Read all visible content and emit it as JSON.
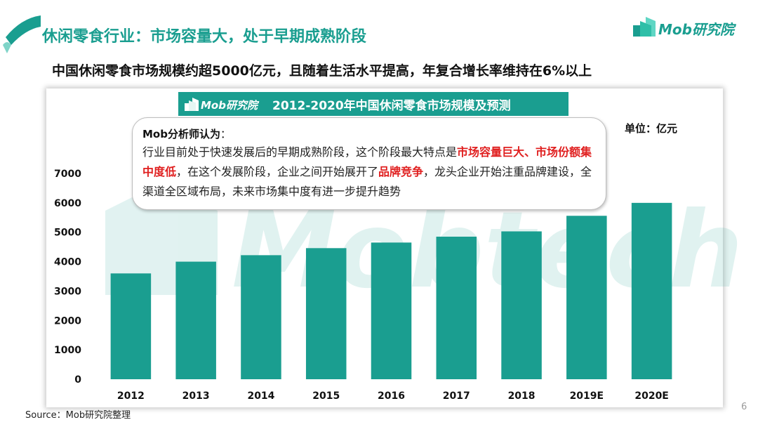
{
  "header": {
    "title": "休闲零食行业：市场容量大，处于早期成熟阶段",
    "subtitle": "中国休闲零食市场规模约超5000亿元，且随着生活水平提高，年复合增长率维持在6%以上",
    "logo_text": "Mob研究院"
  },
  "chart_banner": {
    "logo_text": "Mob研究院",
    "title": "2012-2020年中国休闲零食市场规模及预测"
  },
  "unit_label": "单位：亿元",
  "callout": {
    "heading": "Mob分析师认为",
    "heading_colon": "：",
    "body_1": "行业目前处于快速发展后的早期成熟阶段，这个阶段最大特点是",
    "highlight_1": "市场容量巨大、市场份额集中度低",
    "body_2": "，在这个发展阶段，企业之间开始展开了",
    "highlight_2": "品牌竞争",
    "body_3": "，龙头企业开始注重品牌建设，全渠道全区域布局，未来市场集中度有进一步提升趋势"
  },
  "watermark": "Mobtech",
  "source": "Source：Mob研究院整理",
  "page_number": "6",
  "colors": {
    "accent": "#1a9e90",
    "bar": "#1a9e90",
    "highlight": "#e02020"
  },
  "chart_data": {
    "type": "bar",
    "title": "2012-2020年中国休闲零食市场规模及预测",
    "categories": [
      "2012",
      "2013",
      "2014",
      "2015",
      "2016",
      "2017",
      "2018",
      "2019E",
      "2020E"
    ],
    "values": [
      3600,
      4000,
      4220,
      4460,
      4650,
      4850,
      5030,
      5560,
      6000
    ],
    "ylim": [
      0,
      7000
    ],
    "yticks": [
      0,
      1000,
      2000,
      3000,
      4000,
      5000,
      6000,
      7000
    ],
    "ylabel": "单位：亿元",
    "xlabel": "",
    "grid": false,
    "data_labels": false
  }
}
